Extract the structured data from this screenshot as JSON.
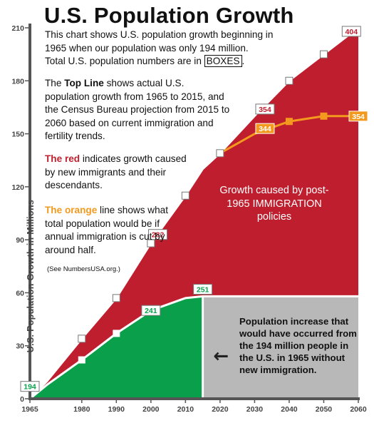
{
  "header": {
    "title": "U.S. Population Growth",
    "intro_line1": "This chart shows U.S. population growth beginning in",
    "intro_line2": "1965 when our population was only 194 million.",
    "intro_line3_pre": "Total U.S. population numbers are in ",
    "intro_boxed": "BOXES",
    "intro_line3_post": "."
  },
  "notes": {
    "topline_pre": "The ",
    "topline_bold": "Top Line",
    "topline_rest": " shows actual U.S. population growth from 1965 to 2015, and the Census Bureau projection from 2015 to 2060 based on current immigration and fertility trends.",
    "red_bold": "The red",
    "red_rest": " indicates growth caused by new immigrants and their descendants.",
    "orange_bold": "The orange",
    "orange_rest": " line shows what total population would be if annual immigration is cut by around half.",
    "source": "(See NumbersUSA.org.)"
  },
  "annotations": {
    "red_area": "Growth caused by post-1965 IMMIGRATION policies",
    "grey_area": "Population increase that would have occurred from the 194 million people in the U.S. in 1965 without new immigration.",
    "arrow": "←"
  },
  "colors": {
    "red": "#bf1e2e",
    "green": "#0aa04b",
    "grey": "#b8b8b8",
    "orange": "#f39a1e",
    "axis": "#555555"
  },
  "chart_data": {
    "type": "area",
    "ylabel": "U.S. Population Growth in Millions",
    "xlabel": "",
    "xlim": [
      1965,
      2060
    ],
    "ylim": [
      0,
      210
    ],
    "x_ticks": [
      1965,
      1980,
      1990,
      2000,
      2010,
      2020,
      2030,
      2040,
      2050,
      2060
    ],
    "y_ticks": [
      0,
      30,
      60,
      90,
      120,
      150,
      180,
      210
    ],
    "series": [
      {
        "key": "total",
        "x": [
          1965,
          1970,
          1980,
          1990,
          2000,
          2010,
          2015,
          2020,
          2030,
          2040,
          2050,
          2060
        ],
        "values": [
          0,
          10,
          34,
          57,
          88,
          115,
          130,
          139,
          160,
          180,
          195,
          210
        ]
      },
      {
        "key": "no_immigration",
        "x": [
          1965,
          1970,
          1980,
          1990,
          2000,
          2010,
          2015
        ],
        "values": [
          0,
          8,
          22,
          37,
          50,
          57,
          58
        ]
      },
      {
        "key": "reduced_immigration",
        "x": [
          2020,
          2030,
          2040,
          2050,
          2060
        ],
        "values": [
          139,
          150,
          157,
          160,
          160
        ]
      }
    ],
    "markers": {
      "total": [
        1980,
        1990,
        2000,
        2010,
        2020,
        2040,
        2050
      ],
      "no_immigration": [
        1980,
        1990
      ],
      "reduced_immigration": [
        2040,
        2050
      ]
    },
    "split_year": 2015,
    "boxed_labels": [
      {
        "text": "194",
        "x": 1965,
        "y": 7,
        "style": "green"
      },
      {
        "text": "241",
        "x": 2000,
        "y": 50,
        "style": "green"
      },
      {
        "text": "251",
        "x": 2015,
        "y": 62,
        "style": "green"
      },
      {
        "text": "282",
        "x": 2002,
        "y": 93,
        "style": "red"
      },
      {
        "text": "354",
        "x": 2033,
        "y": 164,
        "style": "red"
      },
      {
        "text": "344",
        "x": 2033,
        "y": 153,
        "style": "orange"
      },
      {
        "text": "354",
        "x": 2060,
        "y": 160,
        "style": "orange"
      },
      {
        "text": "404",
        "x": 2058,
        "y": 208,
        "style": "red"
      }
    ]
  }
}
